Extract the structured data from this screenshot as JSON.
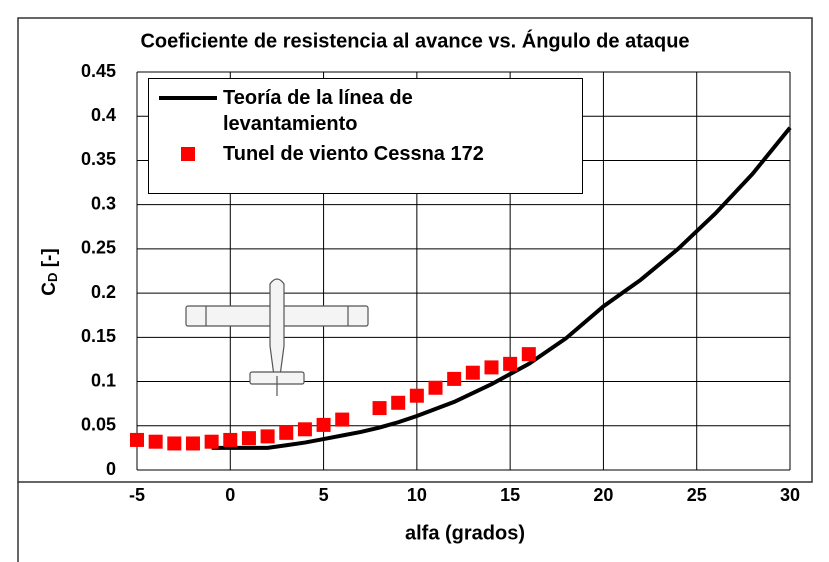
{
  "chart_data": {
    "type": "line",
    "title": "Coeficiente de resistencia al avance vs. Ángulo de ataque",
    "xlabel": "alfa (grados)",
    "ylabel": {
      "text": "C",
      "subscript": "D",
      "suffix": " [-]"
    },
    "xlim": [
      -5,
      30
    ],
    "xticks": [
      -5,
      0,
      5,
      10,
      15,
      20,
      25,
      30
    ],
    "ylim": [
      0,
      0.45
    ],
    "yticks": [
      0,
      0.05,
      0.1,
      0.15,
      0.2,
      0.25,
      0.3,
      0.35,
      0.4,
      0.45
    ],
    "grid": true,
    "legend": "top-left",
    "series": [
      {
        "name": "Teoría de la línea de levantamiento",
        "type": "line",
        "color": "#000000",
        "x": [
          -1,
          0,
          1,
          2,
          3,
          4,
          5,
          6,
          7,
          8,
          9,
          10,
          12,
          14,
          16,
          18,
          20,
          22,
          24,
          26,
          28,
          30
        ],
        "values": [
          0.025,
          0.025,
          0.025,
          0.025,
          0.028,
          0.031,
          0.035,
          0.039,
          0.043,
          0.048,
          0.054,
          0.061,
          0.077,
          0.097,
          0.12,
          0.149,
          0.185,
          0.215,
          0.25,
          0.29,
          0.335,
          0.387
        ]
      },
      {
        "name": "Tunel de viento Cessna 172",
        "type": "scatter",
        "color": "#ff0000",
        "x": [
          -5,
          -4,
          -3,
          -2,
          -1,
          0,
          1,
          2,
          3,
          4,
          5,
          6,
          8,
          9,
          10,
          11,
          12,
          13,
          14,
          15,
          16
        ],
        "values": [
          0.034,
          0.032,
          0.03,
          0.03,
          0.032,
          0.034,
          0.036,
          0.038,
          0.042,
          0.046,
          0.051,
          0.057,
          0.07,
          0.076,
          0.084,
          0.093,
          0.103,
          0.11,
          0.116,
          0.12,
          0.131
        ]
      }
    ]
  }
}
